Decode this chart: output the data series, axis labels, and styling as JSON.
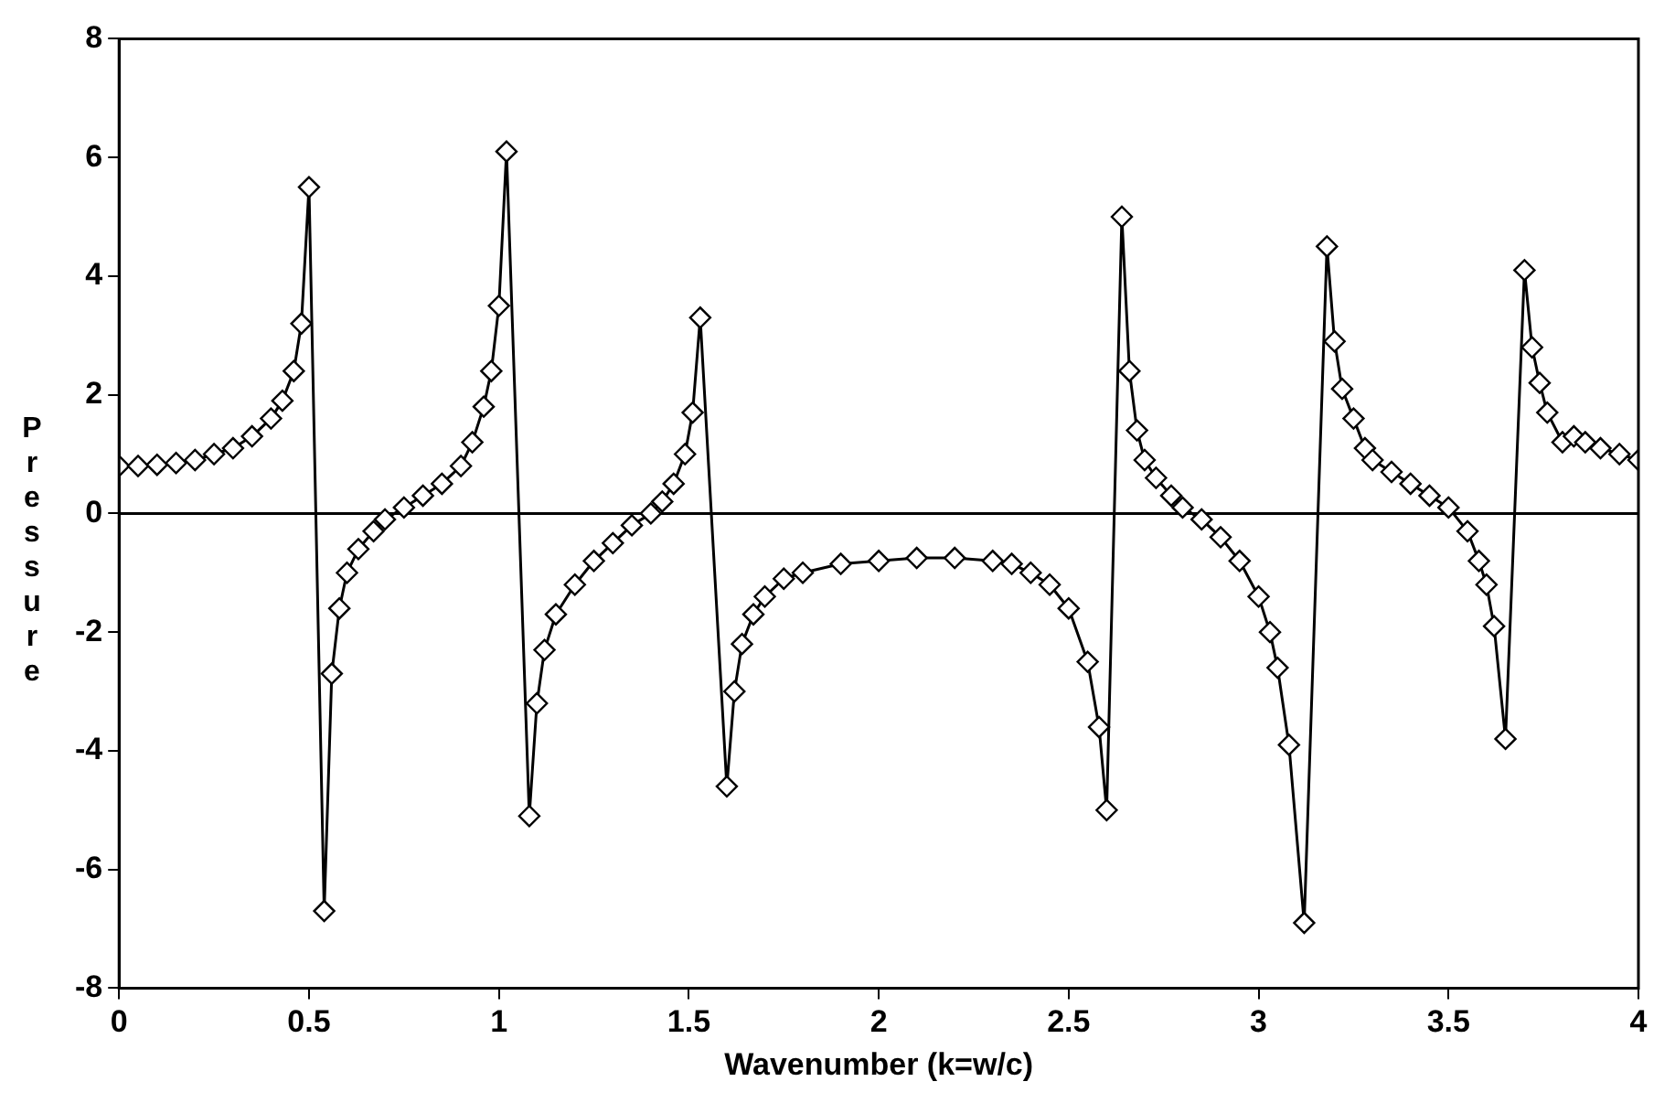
{
  "chart_data": {
    "type": "line",
    "xlabel": "Wavenumber (k=w/c)",
    "ylabel": "Pressure",
    "xlim": [
      0,
      4
    ],
    "xticks": [
      0,
      0.5,
      1,
      1.5,
      2,
      2.5,
      3,
      3.5,
      4
    ],
    "ylim": [
      -8,
      8
    ],
    "yticks": [
      -8,
      -6,
      -4,
      -2,
      0,
      2,
      4,
      6,
      8
    ],
    "grid": false,
    "legend": false,
    "marker": "diamond",
    "line_style": "solid",
    "ref_lines": [
      {
        "axis": "y",
        "value": 0,
        "color": "#000000"
      }
    ],
    "series": [
      {
        "color": "#000000",
        "x": [
          0,
          0.05,
          0.1,
          0.15,
          0.2,
          0.25,
          0.3,
          0.35,
          0.4,
          0.43,
          0.46,
          0.48,
          0.5,
          0.54,
          0.56,
          0.58,
          0.6,
          0.63,
          0.67,
          0.7,
          0.75,
          0.8,
          0.85,
          0.9,
          0.93,
          0.96,
          0.98,
          1.0,
          1.02,
          1.08,
          1.1,
          1.12,
          1.15,
          1.2,
          1.25,
          1.3,
          1.35,
          1.4,
          1.43,
          1.46,
          1.49,
          1.51,
          1.53,
          1.6,
          1.62,
          1.64,
          1.67,
          1.7,
          1.75,
          1.8,
          1.9,
          2.0,
          2.1,
          2.2,
          2.3,
          2.35,
          2.4,
          2.45,
          2.5,
          2.55,
          2.58,
          2.6,
          2.64,
          2.66,
          2.68,
          2.7,
          2.73,
          2.77,
          2.8,
          2.85,
          2.9,
          2.95,
          3.0,
          3.03,
          3.05,
          3.08,
          3.12,
          3.18,
          3.2,
          3.22,
          3.25,
          3.28,
          3.3,
          3.35,
          3.4,
          3.45,
          3.5,
          3.55,
          3.58,
          3.6,
          3.62,
          3.65,
          3.7,
          3.72,
          3.74,
          3.76,
          3.8,
          3.83,
          3.86,
          3.9,
          3.95,
          4.0
        ],
        "values": [
          0.8,
          0.8,
          0.82,
          0.85,
          0.9,
          1.0,
          1.1,
          1.3,
          1.6,
          1.9,
          2.4,
          3.2,
          5.5,
          -6.7,
          -2.7,
          -1.6,
          -1.0,
          -0.6,
          -0.3,
          -0.1,
          0.1,
          0.3,
          0.5,
          0.8,
          1.2,
          1.8,
          2.4,
          3.5,
          6.1,
          -5.1,
          -3.2,
          -2.3,
          -1.7,
          -1.2,
          -0.8,
          -0.5,
          -0.2,
          0.0,
          0.2,
          0.5,
          1.0,
          1.7,
          3.3,
          -4.6,
          -3.0,
          -2.2,
          -1.7,
          -1.4,
          -1.1,
          -1.0,
          -0.85,
          -0.8,
          -0.75,
          -0.75,
          -0.8,
          -0.85,
          -1.0,
          -1.2,
          -1.6,
          -2.5,
          -3.6,
          -5.0,
          5.0,
          2.4,
          1.4,
          0.9,
          0.6,
          0.3,
          0.1,
          -0.1,
          -0.4,
          -0.8,
          -1.4,
          -2.0,
          -2.6,
          -3.9,
          -6.9,
          4.5,
          2.9,
          2.1,
          1.6,
          1.1,
          0.9,
          0.7,
          0.5,
          0.3,
          0.1,
          -0.3,
          -0.8,
          -1.2,
          -1.9,
          -3.8,
          4.1,
          2.8,
          2.2,
          1.7,
          1.2,
          1.3,
          1.2,
          1.1,
          1.0,
          0.9
        ]
      }
    ]
  }
}
